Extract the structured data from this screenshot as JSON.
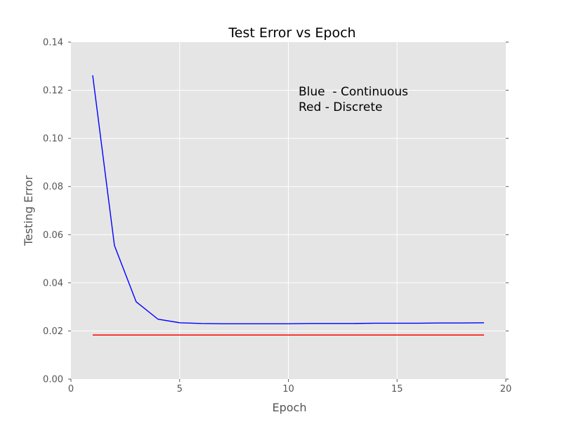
{
  "chart_data": {
    "type": "line",
    "title": "Test Error vs Epoch",
    "xlabel": "Epoch",
    "ylabel": "Testing Error",
    "xlim": [
      0,
      20
    ],
    "ylim": [
      0,
      0.14
    ],
    "x_ticks": [
      0,
      5,
      10,
      15,
      20
    ],
    "x_tick_labels": [
      "0",
      "5",
      "10",
      "15",
      "20"
    ],
    "y_ticks": [
      0,
      0.02,
      0.04,
      0.06,
      0.08,
      0.1,
      0.12,
      0.14
    ],
    "y_tick_labels": [
      "0.00",
      "0.02",
      "0.04",
      "0.06",
      "0.08",
      "0.10",
      "0.12",
      "0.14"
    ],
    "grid": true,
    "legend": "none",
    "background_color": "#e5e5e5",
    "annotations": [
      "Blue  - Continuous",
      "Red - Discrete"
    ],
    "series": [
      {
        "color": "#0000ff",
        "x": [
          1,
          2,
          3,
          4,
          5,
          6,
          7,
          8,
          9,
          10,
          11,
          12,
          13,
          14,
          15,
          16,
          17,
          18,
          19
        ],
        "y": [
          0.1262,
          0.0555,
          0.0321,
          0.0249,
          0.0234,
          0.0231,
          0.023,
          0.023,
          0.023,
          0.023,
          0.0231,
          0.0231,
          0.0231,
          0.0232,
          0.0232,
          0.0232,
          0.0233,
          0.0233,
          0.0234
        ]
      },
      {
        "color": "#ff0000",
        "x": [
          1,
          19
        ],
        "y": [
          0.0183,
          0.0183
        ]
      }
    ]
  }
}
